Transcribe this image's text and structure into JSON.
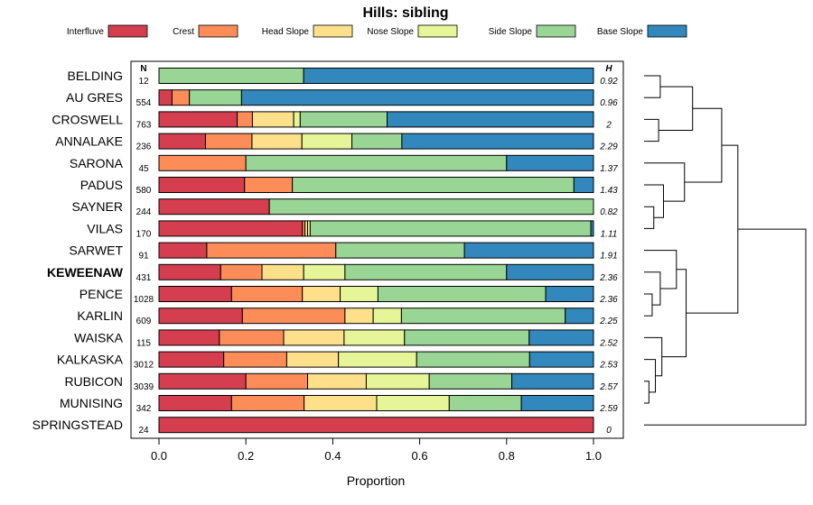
{
  "chart_data": {
    "type": "bar",
    "stacked": true,
    "orientation": "horizontal",
    "title": "Hills: sibling",
    "xlabel": "Proportion",
    "ylabel": "",
    "xlim": [
      0,
      1
    ],
    "x_ticks": [
      0,
      0.2,
      0.4,
      0.6,
      0.8,
      1
    ],
    "x_tick_labels": [
      "0.0",
      "0.2",
      "0.4",
      "0.6",
      "0.8",
      "1.0"
    ],
    "n_header": "N",
    "h_header": "H",
    "highlight": "KEWEENAW",
    "legend": [
      {
        "name": "Interfluve",
        "color": "#d53e4f"
      },
      {
        "name": "Crest",
        "color": "#fc8d59"
      },
      {
        "name": "Head Slope",
        "color": "#fee08b"
      },
      {
        "name": "Nose Slope",
        "color": "#e6f598"
      },
      {
        "name": "Side Slope",
        "color": "#99d594"
      },
      {
        "name": "Base Slope",
        "color": "#3288bd"
      }
    ],
    "rows": [
      {
        "name": "BELDING",
        "n": "12",
        "h": "0.92",
        "values": [
          0,
          0,
          0,
          0,
          0.333,
          0.667
        ]
      },
      {
        "name": "AU GRES",
        "n": "554",
        "h": "0.96",
        "values": [
          0.03,
          0.04,
          0,
          0,
          0.12,
          0.81
        ]
      },
      {
        "name": "CROSWELL",
        "n": "763",
        "h": "2",
        "values": [
          0.18,
          0.035,
          0.095,
          0.015,
          0.2,
          0.475
        ]
      },
      {
        "name": "ANNALAKE",
        "n": "236",
        "h": "2.29",
        "values": [
          0.107,
          0.107,
          0.115,
          0.115,
          0.115,
          0.441
        ]
      },
      {
        "name": "SARONA",
        "n": "45",
        "h": "1.37",
        "values": [
          0,
          0.2,
          0,
          0,
          0.6,
          0.2
        ]
      },
      {
        "name": "PADUS",
        "n": "580",
        "h": "1.43",
        "values": [
          0.197,
          0.11,
          0,
          0,
          0.648,
          0.045
        ]
      },
      {
        "name": "SAYNER",
        "n": "244",
        "h": "0.82",
        "values": [
          0.254,
          0,
          0,
          0,
          0.746,
          0
        ]
      },
      {
        "name": "VILAS",
        "n": "170",
        "h": "1.11",
        "values": [
          0.33,
          0.006,
          0.006,
          0.006,
          0.646,
          0.006
        ]
      },
      {
        "name": "SARWET",
        "n": "91",
        "h": "1.91",
        "values": [
          0.11,
          0.297,
          0,
          0,
          0.296,
          0.297
        ]
      },
      {
        "name": "KEWEENAW",
        "n": "431",
        "h": "2.36",
        "values": [
          0.142,
          0.095,
          0.096,
          0.095,
          0.372,
          0.2
        ]
      },
      {
        "name": "PENCE",
        "n": "1028",
        "h": "2.36",
        "values": [
          0.167,
          0.163,
          0.087,
          0.087,
          0.386,
          0.11
        ]
      },
      {
        "name": "KARLIN",
        "n": "609",
        "h": "2.25",
        "values": [
          0.192,
          0.236,
          0.065,
          0.065,
          0.377,
          0.065
        ]
      },
      {
        "name": "WAISKA",
        "n": "115",
        "h": "2.52",
        "values": [
          0.139,
          0.148,
          0.139,
          0.139,
          0.287,
          0.148
        ]
      },
      {
        "name": "KALKASKA",
        "n": "3012",
        "h": "2.53",
        "values": [
          0.149,
          0.145,
          0.119,
          0.18,
          0.26,
          0.147
        ]
      },
      {
        "name": "RUBICON",
        "n": "3039",
        "h": "2.57",
        "values": [
          0.2,
          0.142,
          0.135,
          0.145,
          0.19,
          0.188
        ]
      },
      {
        "name": "MUNISING",
        "n": "342",
        "h": "2.59",
        "values": [
          0.167,
          0.167,
          0.167,
          0.167,
          0.166,
          0.166
        ]
      },
      {
        "name": "SPRINGSTEAD",
        "n": "24",
        "h": "0",
        "values": [
          1,
          0,
          0,
          0,
          0,
          0
        ]
      }
    ],
    "dendrogram_merges": [
      [
        0,
        1,
        0.1
      ],
      [
        2,
        3,
        0.09
      ],
      [
        17,
        18,
        0.3
      ],
      [
        6,
        7,
        0.06
      ],
      [
        20,
        5,
        0.12
      ],
      [
        4,
        21,
        0.25
      ],
      [
        14,
        15,
        0.03
      ],
      [
        13,
        23,
        0.07
      ],
      [
        12,
        24,
        0.11
      ],
      [
        10,
        11,
        0.05
      ],
      [
        9,
        26,
        0.1
      ],
      [
        8,
        27,
        0.2
      ],
      [
        25,
        28,
        0.26
      ],
      [
        19,
        22,
        0.48
      ],
      [
        29,
        30,
        0.58
      ],
      [
        31,
        16,
        1.0
      ]
    ]
  }
}
